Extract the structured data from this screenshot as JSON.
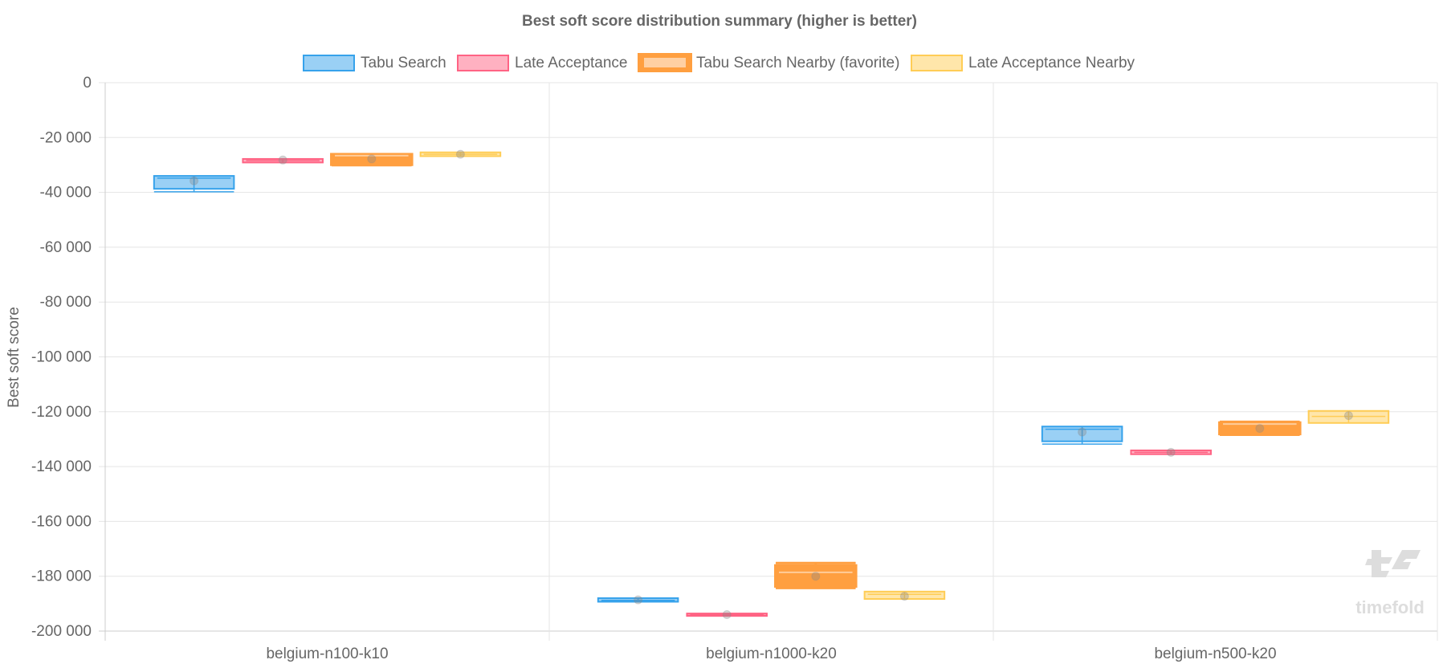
{
  "chart_data": {
    "type": "boxplot",
    "title": "Best soft score distribution summary (higher is better)",
    "xlabel": "",
    "ylabel": "Best soft score",
    "ylim": [
      -200000,
      0
    ],
    "yticks": [
      0,
      -20000,
      -40000,
      -60000,
      -80000,
      -100000,
      -120000,
      -140000,
      -160000,
      -180000,
      -200000
    ],
    "ytick_labels": [
      "0",
      "-20 000",
      "-40 000",
      "-60 000",
      "-80 000",
      "-100 000",
      "-120 000",
      "-140 000",
      "-160 000",
      "-180 000",
      "-200 000"
    ],
    "grid": true,
    "legend_position": "top",
    "categories": [
      "belgium-n100-k10",
      "belgium-n1000-k20",
      "belgium-n500-k20"
    ],
    "series": [
      {
        "name": "Tabu Search",
        "color": "#36a2eb",
        "favorite": false,
        "values": [
          {
            "min": -39800,
            "q1": -38700,
            "median": -34800,
            "q3": -34000,
            "max": -34000,
            "mean": -35800
          },
          {
            "min": -189300,
            "q1": -189300,
            "median": -188800,
            "q3": -188000,
            "max": -188000,
            "mean": -188600
          },
          {
            "min": -131800,
            "q1": -130800,
            "median": -126400,
            "q3": -125400,
            "max": -125400,
            "mean": -127400
          }
        ]
      },
      {
        "name": "Late Acceptance",
        "color": "#ff6384",
        "favorite": false,
        "values": [
          {
            "min": -29100,
            "q1": -29100,
            "median": -28400,
            "q3": -27800,
            "max": -27800,
            "mean": -28200
          },
          {
            "min": -194300,
            "q1": -194300,
            "median": -194000,
            "q3": -193600,
            "max": -193600,
            "mean": -194000
          },
          {
            "min": -135500,
            "q1": -135500,
            "median": -134800,
            "q3": -134100,
            "max": -134100,
            "mean": -134800
          }
        ]
      },
      {
        "name": "Tabu Search Nearby (favorite)",
        "color": "#ff9f40",
        "favorite": true,
        "values": [
          {
            "min": -30100,
            "q1": -29800,
            "median": -26600,
            "q3": -26200,
            "max": -26100,
            "mean": -27800
          },
          {
            "min": -184300,
            "q1": -183600,
            "median": -178600,
            "q3": -176200,
            "max": -175200,
            "mean": -180000
          },
          {
            "min": -128400,
            "q1": -128000,
            "median": -124500,
            "q3": -124100,
            "max": -123700,
            "mean": -126100
          }
        ]
      },
      {
        "name": "Late Acceptance Nearby",
        "color": "#ffcd56",
        "favorite": false,
        "values": [
          {
            "min": -26800,
            "q1": -26800,
            "median": -26100,
            "q3": -25400,
            "max": -25400,
            "mean": -26100
          },
          {
            "min": -188300,
            "q1": -188300,
            "median": -186600,
            "q3": -185600,
            "max": -185600,
            "mean": -187300
          },
          {
            "min": -124100,
            "q1": -124100,
            "median": -121700,
            "q3": -119700,
            "max": -119700,
            "mean": -121400
          }
        ]
      }
    ]
  },
  "watermark": {
    "text": "timefold"
  }
}
